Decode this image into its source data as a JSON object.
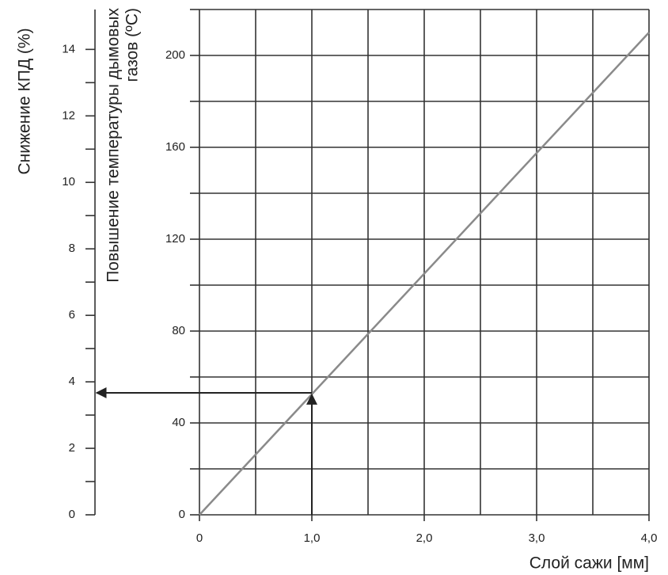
{
  "chart_data": {
    "type": "line",
    "y2_title": "Снижение КПД (%)",
    "y_title": [
      "Повышение температуры дымовых",
      "газов (ºC)"
    ],
    "x_title": "Слой сажи [мм]",
    "x": [
      0,
      4.0
    ],
    "series": [
      {
        "color": "#8a8a8a",
        "values": [
          0,
          210
        ]
      }
    ],
    "xlim": [
      0,
      4.0
    ],
    "xticks": [
      0,
      {
        "value": 1.0,
        "label": "1,0"
      },
      {
        "value": 2.0,
        "label": "2,0"
      },
      {
        "value": 3.0,
        "label": "3,0"
      },
      {
        "value": 4.0,
        "label": "4,0"
      }
    ],
    "xminorticks": [
      0.5,
      1.5,
      2.5,
      3.5
    ],
    "ylim": [
      0,
      220
    ],
    "yticks": [
      0,
      40,
      80,
      120,
      160,
      200
    ],
    "yminorticks": [
      20,
      60,
      100,
      140,
      180,
      220
    ],
    "y2lim": [
      0,
      15.2
    ],
    "y2ticks": [
      0,
      2,
      4,
      6,
      8,
      10,
      12,
      14
    ],
    "y2minorticks": [
      1,
      3,
      5,
      7,
      9,
      11,
      13
    ],
    "annotation": {
      "x": 1.0,
      "y": 53,
      "y2": 3.67
    },
    "grid": true
  }
}
